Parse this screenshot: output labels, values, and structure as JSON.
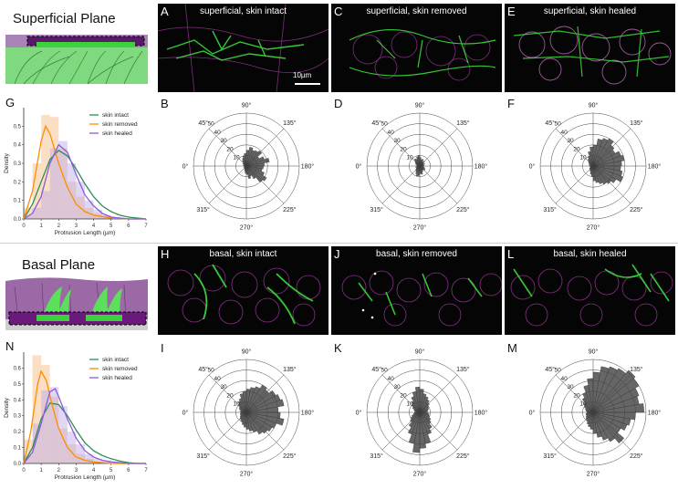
{
  "top": {
    "title": "Superficial Plane",
    "micro": [
      {
        "letter": "A",
        "caption": "superficial, skin intact",
        "scalebar": "10µm"
      },
      {
        "letter": "C",
        "caption": "superficial, skin removed"
      },
      {
        "letter": "E",
        "caption": "superficial, skin healed"
      }
    ],
    "polar_letters": [
      "B",
      "D",
      "F"
    ],
    "density_letter": "G"
  },
  "bottom": {
    "title": "Basal Plane",
    "micro": [
      {
        "letter": "H",
        "caption": "basal, skin intact"
      },
      {
        "letter": "J",
        "caption": "basal, skin removed"
      },
      {
        "letter": "L",
        "caption": "basal, skin healed"
      }
    ],
    "polar_letters": [
      "I",
      "K",
      "M"
    ],
    "density_letter": "N"
  },
  "colors": {
    "intact": "#2e8b57",
    "removed": "#ff8c00",
    "healed": "#8a5cd6",
    "cell_green": "#5ccf5c",
    "skin_purple": "#9b6aa6",
    "rose": "#555555"
  },
  "chart_data": [
    {
      "panel": "G",
      "type": "line",
      "xlabel": "Protrusion Length (µm)",
      "ylabel": "Density",
      "xlim": [
        0,
        7
      ],
      "ylim": [
        0,
        0.6
      ],
      "xticks": [
        "0",
        "1",
        "2",
        "3",
        "4",
        "5",
        "6",
        "7"
      ],
      "yticks": [
        "0.0",
        "0.1",
        "0.2",
        "0.3",
        "0.4",
        "0.5"
      ],
      "legend_position": "top-right",
      "series": [
        {
          "name": "skin intact",
          "color": "#2e8b57",
          "x": [
            0,
            0.5,
            1,
            1.5,
            2,
            2.5,
            3,
            3.5,
            4,
            4.5,
            5,
            5.5,
            6,
            6.5,
            7
          ],
          "y": [
            0,
            0.08,
            0.2,
            0.32,
            0.37,
            0.34,
            0.27,
            0.19,
            0.12,
            0.07,
            0.04,
            0.02,
            0.01,
            0.005,
            0
          ]
        },
        {
          "name": "skin removed",
          "color": "#ff8c00",
          "x": [
            0,
            0.5,
            1,
            1.25,
            1.5,
            2,
            2.5,
            3,
            3.5,
            4,
            5,
            6,
            7
          ],
          "y": [
            0,
            0.15,
            0.42,
            0.5,
            0.46,
            0.3,
            0.17,
            0.08,
            0.04,
            0.02,
            0.005,
            0,
            0
          ]
        },
        {
          "name": "skin healed",
          "color": "#8a5cd6",
          "x": [
            0,
            0.5,
            1,
            1.5,
            2,
            2.5,
            3,
            3.5,
            4,
            4.5,
            5,
            6,
            7
          ],
          "y": [
            0,
            0.03,
            0.12,
            0.3,
            0.4,
            0.36,
            0.24,
            0.13,
            0.07,
            0.03,
            0.01,
            0,
            0
          ]
        }
      ],
      "histogram_x": [
        0.25,
        0.75,
        1.25,
        1.75,
        2.25,
        2.75,
        3.25,
        3.75,
        4.25,
        4.75,
        5.25
      ],
      "histogram": {
        "removed": [
          0.06,
          0.3,
          0.56,
          0.55,
          0.38,
          0.2,
          0.12,
          0.06,
          0.03,
          0.02,
          0.01
        ],
        "healed": [
          0.02,
          0.06,
          0.15,
          0.38,
          0.42,
          0.3,
          0.2,
          0.1,
          0.05,
          0.02,
          0.01
        ]
      }
    },
    {
      "panel": "N",
      "type": "line",
      "xlabel": "Protrusion Length (µm)",
      "ylabel": "Density",
      "xlim": [
        0,
        7
      ],
      "ylim": [
        0,
        0.7
      ],
      "xticks": [
        "0",
        "1",
        "2",
        "3",
        "4",
        "5",
        "6",
        "7"
      ],
      "yticks": [
        "0.0",
        "0.1",
        "0.2",
        "0.3",
        "0.4",
        "0.5",
        "0.6"
      ],
      "legend_position": "top-right",
      "series": [
        {
          "name": "skin intact",
          "color": "#2e8b57",
          "x": [
            0,
            0.5,
            1,
            1.5,
            2,
            2.5,
            3,
            3.5,
            4,
            4.5,
            5,
            5.5,
            6,
            6.5,
            7
          ],
          "y": [
            0,
            0.1,
            0.28,
            0.38,
            0.37,
            0.3,
            0.21,
            0.13,
            0.08,
            0.05,
            0.03,
            0.015,
            0.005,
            0,
            0
          ]
        },
        {
          "name": "skin removed",
          "color": "#ff8c00",
          "x": [
            0,
            0.4,
            0.8,
            1,
            1.3,
            1.6,
            2,
            2.5,
            3,
            3.5,
            4,
            5,
            6,
            7
          ],
          "y": [
            0,
            0.2,
            0.5,
            0.58,
            0.52,
            0.38,
            0.22,
            0.1,
            0.04,
            0.02,
            0.01,
            0,
            0,
            0
          ]
        },
        {
          "name": "skin healed",
          "color": "#8a5cd6",
          "x": [
            0,
            0.5,
            1,
            1.5,
            1.8,
            2,
            2.5,
            3,
            3.5,
            4,
            4.5,
            5,
            6,
            7
          ],
          "y": [
            0,
            0.07,
            0.25,
            0.45,
            0.47,
            0.42,
            0.28,
            0.16,
            0.08,
            0.04,
            0.02,
            0.01,
            0,
            0
          ]
        }
      ],
      "histogram_x": [
        0.25,
        0.75,
        1.25,
        1.75,
        2.25,
        2.75,
        3.25,
        3.75,
        4.25,
        4.75,
        5.25
      ],
      "histogram": {
        "removed": [
          0.15,
          0.68,
          0.62,
          0.42,
          0.22,
          0.12,
          0.06,
          0.03,
          0.01,
          0.01,
          0
        ],
        "healed": [
          0.05,
          0.25,
          0.46,
          0.48,
          0.36,
          0.2,
          0.12,
          0.06,
          0.03,
          0.02,
          0.01
        ]
      }
    },
    {
      "panel": "B",
      "type": "polar-histogram",
      "angle_labels": [
        "90°",
        "135°",
        "180°",
        "225°",
        "270°",
        "315°",
        "0°",
        "45°"
      ],
      "radial_ticks": [
        "10",
        "20",
        "30",
        "40",
        "50"
      ],
      "rmax": 50,
      "bins_deg": [
        0,
        10,
        20,
        30,
        40,
        50,
        60,
        70,
        80,
        90,
        100,
        110,
        120,
        130,
        140,
        150,
        160,
        170,
        180,
        190,
        200,
        210,
        220,
        230,
        240,
        250,
        260,
        270,
        280,
        290,
        300,
        310,
        320,
        330,
        340,
        350
      ],
      "values": [
        2,
        3,
        2,
        4,
        3,
        6,
        8,
        10,
        12,
        15,
        18,
        16,
        17,
        19,
        14,
        18,
        22,
        17,
        16,
        15,
        18,
        22,
        20,
        14,
        10,
        12,
        8,
        7,
        5,
        4,
        3,
        2,
        2,
        3,
        2,
        2
      ]
    },
    {
      "panel": "D",
      "type": "polar-histogram",
      "angle_labels": [
        "90°",
        "135°",
        "180°",
        "225°",
        "270°",
        "315°",
        "0°",
        "45°"
      ],
      "radial_ticks": [
        "10",
        "20",
        "30",
        "40",
        "50"
      ],
      "rmax": 50,
      "bins_deg": [
        0,
        10,
        20,
        30,
        40,
        50,
        60,
        70,
        80,
        90,
        100,
        110,
        120,
        130,
        140,
        150,
        160,
        170,
        180,
        190,
        200,
        210,
        220,
        230,
        240,
        250,
        260,
        270,
        280,
        290,
        300,
        310,
        320,
        330,
        340,
        350
      ],
      "values": [
        3,
        2,
        4,
        5,
        6,
        8,
        7,
        9,
        10,
        8,
        6,
        7,
        5,
        6,
        4,
        5,
        3,
        4,
        3,
        4,
        5,
        6,
        4,
        5,
        6,
        8,
        7,
        9,
        10,
        8,
        6,
        5,
        4,
        3,
        4,
        3
      ]
    },
    {
      "panel": "F",
      "type": "polar-histogram",
      "angle_labels": [
        "90°",
        "135°",
        "180°",
        "225°",
        "270°",
        "315°",
        "0°",
        "45°"
      ],
      "radial_ticks": [
        "10",
        "20",
        "30",
        "40",
        "50"
      ],
      "rmax": 50,
      "bins_deg": [
        0,
        10,
        20,
        30,
        40,
        50,
        60,
        70,
        80,
        90,
        100,
        110,
        120,
        130,
        140,
        150,
        160,
        170,
        180,
        190,
        200,
        210,
        220,
        230,
        240,
        250,
        260,
        270,
        280,
        290,
        300,
        310,
        320,
        330,
        340,
        350
      ],
      "values": [
        3,
        4,
        3,
        5,
        6,
        8,
        10,
        14,
        18,
        20,
        26,
        28,
        30,
        26,
        24,
        28,
        30,
        27,
        26,
        28,
        30,
        25,
        22,
        20,
        18,
        16,
        14,
        10,
        8,
        6,
        5,
        4,
        4,
        3,
        3,
        3
      ]
    },
    {
      "panel": "I",
      "type": "polar-histogram",
      "angle_labels": [
        "90°",
        "135°",
        "180°",
        "225°",
        "270°",
        "315°",
        "0°",
        "45°"
      ],
      "radial_ticks": [
        "10",
        "20",
        "30",
        "40",
        "50"
      ],
      "rmax": 50,
      "bins_deg": [
        0,
        10,
        20,
        30,
        40,
        50,
        60,
        70,
        80,
        90,
        100,
        110,
        120,
        130,
        140,
        150,
        160,
        170,
        180,
        190,
        200,
        210,
        220,
        230,
        240,
        250,
        260,
        270,
        280,
        290,
        300,
        310,
        320,
        330,
        340,
        350
      ],
      "values": [
        6,
        5,
        7,
        8,
        10,
        12,
        14,
        18,
        20,
        22,
        24,
        26,
        30,
        28,
        32,
        34,
        36,
        30,
        32,
        36,
        30,
        28,
        26,
        24,
        20,
        18,
        16,
        14,
        12,
        10,
        9,
        8,
        7,
        6,
        6,
        5
      ]
    },
    {
      "panel": "K",
      "type": "polar-histogram",
      "angle_labels": [
        "90°",
        "135°",
        "180°",
        "225°",
        "270°",
        "315°",
        "0°",
        "45°"
      ],
      "radial_ticks": [
        "10",
        "20",
        "30",
        "40",
        "50"
      ],
      "rmax": 50,
      "bins_deg": [
        0,
        10,
        20,
        30,
        40,
        50,
        60,
        70,
        80,
        90,
        100,
        110,
        120,
        130,
        140,
        150,
        160,
        170,
        180,
        190,
        200,
        210,
        220,
        230,
        240,
        250,
        260,
        270,
        280,
        290,
        300,
        310,
        320,
        330,
        340,
        350
      ],
      "values": [
        4,
        5,
        6,
        8,
        10,
        12,
        16,
        20,
        24,
        22,
        18,
        16,
        14,
        12,
        10,
        9,
        8,
        7,
        8,
        9,
        10,
        12,
        14,
        18,
        22,
        30,
        34,
        38,
        30,
        22,
        16,
        12,
        10,
        8,
        6,
        5
      ]
    },
    {
      "panel": "M",
      "type": "polar-histogram",
      "angle_labels": [
        "90°",
        "135°",
        "180°",
        "225°",
        "270°",
        "315°",
        "0°",
        "45°"
      ],
      "radial_ticks": [
        "10",
        "20",
        "30",
        "40",
        "50"
      ],
      "rmax": 50,
      "bins_deg": [
        0,
        10,
        20,
        30,
        40,
        50,
        60,
        70,
        80,
        90,
        100,
        110,
        120,
        130,
        140,
        150,
        160,
        170,
        180,
        190,
        200,
        210,
        220,
        230,
        240,
        250,
        260,
        270,
        280,
        290,
        300,
        310,
        320,
        330,
        340,
        350
      ],
      "values": [
        6,
        7,
        8,
        10,
        12,
        16,
        20,
        26,
        32,
        38,
        44,
        46,
        48,
        52,
        50,
        46,
        44,
        48,
        40,
        36,
        34,
        30,
        38,
        32,
        28,
        24,
        20,
        16,
        14,
        12,
        10,
        9,
        8,
        7,
        7,
        6
      ]
    }
  ]
}
